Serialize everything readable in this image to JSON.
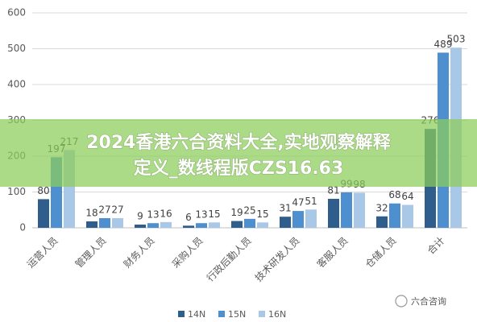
{
  "chart_data": {
    "type": "bar",
    "categories": [
      "运营人员",
      "管理人员",
      "财务人员",
      "采购人员",
      "行政后勤人员",
      "技术研发人员",
      "客服人员",
      "仓储人员",
      "合计"
    ],
    "series": [
      {
        "name": "14N",
        "color": "#2f5d8c",
        "values": [
          80,
          18,
          9,
          6,
          19,
          31,
          81,
          32,
          276
        ]
      },
      {
        "name": "15N",
        "color": "#4d8fcf",
        "values": [
          197,
          27,
          13,
          13,
          25,
          47,
          99,
          68,
          489
        ]
      },
      {
        "name": "16N",
        "color": "#a9c7e7",
        "values": [
          217,
          27,
          16,
          15,
          15,
          51,
          98,
          64,
          503
        ]
      }
    ],
    "ylim": [
      0,
      600
    ],
    "yticks": [
      0,
      100,
      200,
      300,
      400,
      500,
      600
    ],
    "grid": true,
    "legend": "bottom"
  },
  "overlay": {
    "lines": [
      "2024香港六合资料大全,实地观察解释",
      "定义_数线程版CZS16.63"
    ]
  },
  "watermark": "六合咨询"
}
